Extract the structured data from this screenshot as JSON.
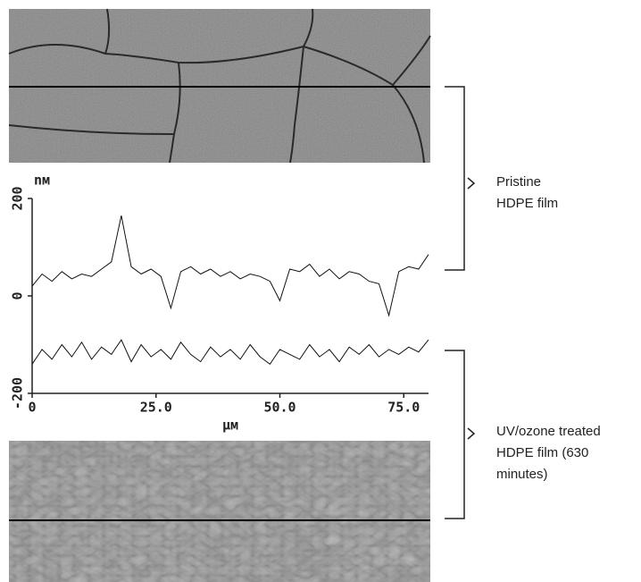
{
  "chart_data": {
    "type": "line",
    "x": [
      0,
      2,
      4,
      6,
      8,
      10,
      12,
      14,
      16,
      18,
      20,
      22,
      24,
      26,
      28,
      30,
      32,
      34,
      36,
      38,
      40,
      42,
      44,
      46,
      48,
      50,
      52,
      54,
      56,
      58,
      60,
      62,
      64,
      66,
      68,
      70,
      72,
      74,
      76,
      78,
      80
    ],
    "series": [
      {
        "color": "#111111",
        "values": [
          20,
          45,
          30,
          50,
          35,
          45,
          40,
          55,
          70,
          165,
          60,
          45,
          55,
          40,
          -25,
          50,
          60,
          45,
          55,
          40,
          50,
          35,
          45,
          40,
          30,
          -10,
          55,
          50,
          65,
          40,
          55,
          35,
          50,
          45,
          30,
          25,
          -40,
          50,
          60,
          55,
          85
        ]
      },
      {
        "color": "#111111",
        "values": [
          -140,
          -110,
          -130,
          -100,
          -125,
          -95,
          -130,
          -105,
          -120,
          -90,
          -135,
          -100,
          -125,
          -110,
          -130,
          -95,
          -120,
          -135,
          -105,
          -125,
          -110,
          -130,
          -100,
          -125,
          -140,
          -110,
          -120,
          -130,
          -100,
          -125,
          -110,
          -135,
          -105,
          -120,
          -100,
          -125,
          -110,
          -120,
          -105,
          -115,
          -90
        ]
      }
    ],
    "xlim": [
      0,
      80
    ],
    "ylim": [
      -200,
      200
    ],
    "xticks": [
      0,
      {
        "value": 25,
        "label": "25.0"
      },
      {
        "value": 50,
        "label": "50.0"
      },
      {
        "value": 75,
        "label": "75.0"
      }
    ],
    "yticks": [
      -200,
      0,
      200
    ],
    "x_label": "μм",
    "y_label": "nм",
    "annotations": [
      {
        "lines": [
          "Pristine",
          "HDPE film"
        ]
      },
      {
        "lines": [
          "UV/ozone treated",
          "HDPE film (630",
          "minutes)"
        ]
      }
    ]
  }
}
